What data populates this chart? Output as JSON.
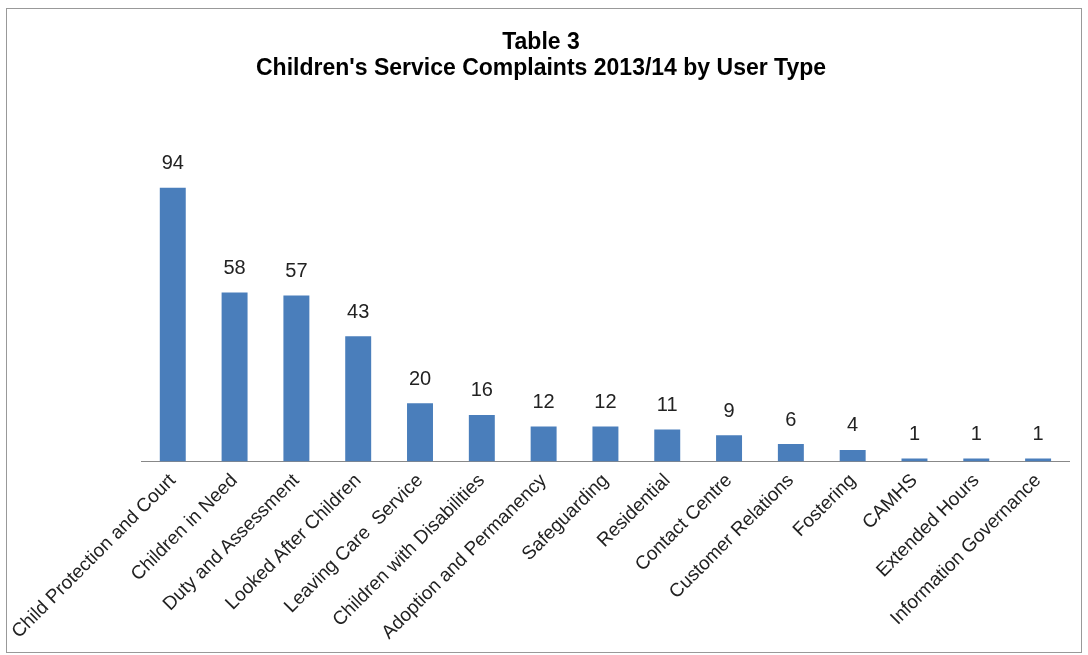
{
  "chart_data": {
    "type": "bar",
    "title": "Table 3\nChildren's Service Complaints 2013/14 by User Type",
    "categories": [
      "Child Protection and Court",
      "Children in Need",
      "Duty and Assessment",
      "Looked After Children",
      "Leaving Care  Service",
      "Children with Disabilities",
      "Adoption and Permanency",
      "Safeguarding",
      "Residential",
      "Contact Centre",
      "Customer Relations",
      "Fostering",
      "CAMHS",
      "Extended Hours",
      "Information Governance"
    ],
    "values": [
      94,
      58,
      57,
      43,
      20,
      16,
      12,
      12,
      11,
      9,
      6,
      4,
      1,
      1,
      1
    ],
    "color": "#4a7ebb",
    "data_labels": true,
    "grid": false,
    "legend": false
  }
}
